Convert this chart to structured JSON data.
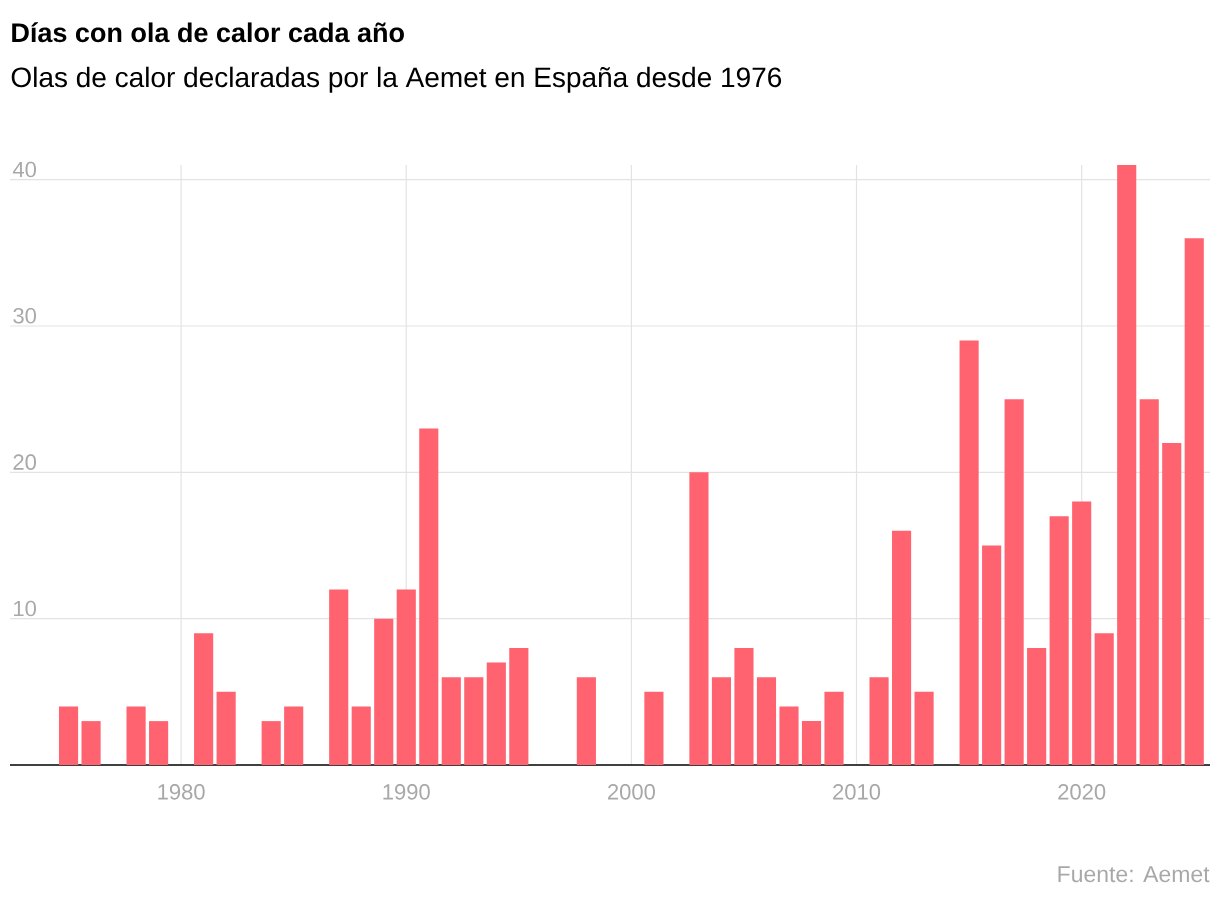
{
  "chart_data": {
    "type": "bar",
    "title": "Días con ola de calor cada año",
    "subtitle": "Olas de calor declaradas por la Aemet en España desde 1976",
    "x": [
      1975,
      1976,
      1978,
      1979,
      1981,
      1982,
      1984,
      1985,
      1987,
      1988,
      1989,
      1990,
      1991,
      1992,
      1993,
      1994,
      1995,
      1998,
      2001,
      2003,
      2004,
      2005,
      2006,
      2007,
      2008,
      2009,
      2011,
      2012,
      2013,
      2015,
      2016,
      2017,
      2018,
      2019,
      2020,
      2021,
      2022,
      2023,
      2024,
      2025
    ],
    "values": [
      4,
      3,
      4,
      3,
      9,
      5,
      3,
      4,
      12,
      4,
      10,
      12,
      23,
      6,
      6,
      7,
      8,
      6,
      5,
      20,
      6,
      8,
      6,
      4,
      3,
      5,
      6,
      16,
      5,
      29,
      15,
      25,
      8,
      17,
      18,
      9,
      41,
      25,
      22,
      36
    ],
    "color": "#ff6370",
    "xlim": [
      1972.4,
      2025.7
    ],
    "ylim": [
      0,
      41
    ],
    "xticks": [
      1980,
      1990,
      2000,
      2010,
      2020
    ],
    "yticks": [
      10,
      20,
      30,
      40
    ],
    "grid": true,
    "annotations": [
      "Fuente: Aemet"
    ]
  }
}
